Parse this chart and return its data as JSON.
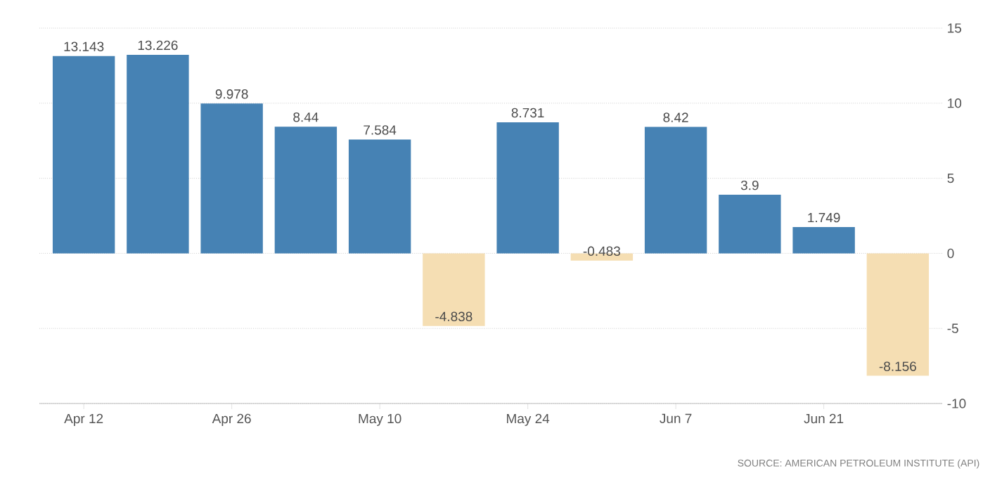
{
  "chart_data": {
    "type": "bar",
    "categories": [
      "Apr 12",
      null,
      "Apr 26",
      null,
      "May 10",
      null,
      "May 24",
      null,
      "Jun 7",
      null,
      "Jun 21",
      null
    ],
    "values": [
      13.143,
      13.226,
      9.978,
      8.44,
      7.584,
      -4.838,
      8.731,
      -0.483,
      8.42,
      3.9,
      1.749,
      -8.156
    ],
    "colors": [
      "#4682b4",
      "#4682b4",
      "#4682b4",
      "#4682b4",
      "#4682b4",
      "#f5deb3",
      "#4682b4",
      "#f5deb3",
      "#4682b4",
      "#4682b4",
      "#4682b4",
      "#f5deb3"
    ],
    "ylim": [
      -10,
      15
    ],
    "yticks": [
      -10,
      -5,
      0,
      5,
      10,
      15
    ],
    "grid": "y",
    "data_labels": true,
    "annotations": [
      "SOURCE: AMERICAN PETROLEUM INSTITUTE (API)"
    ]
  }
}
